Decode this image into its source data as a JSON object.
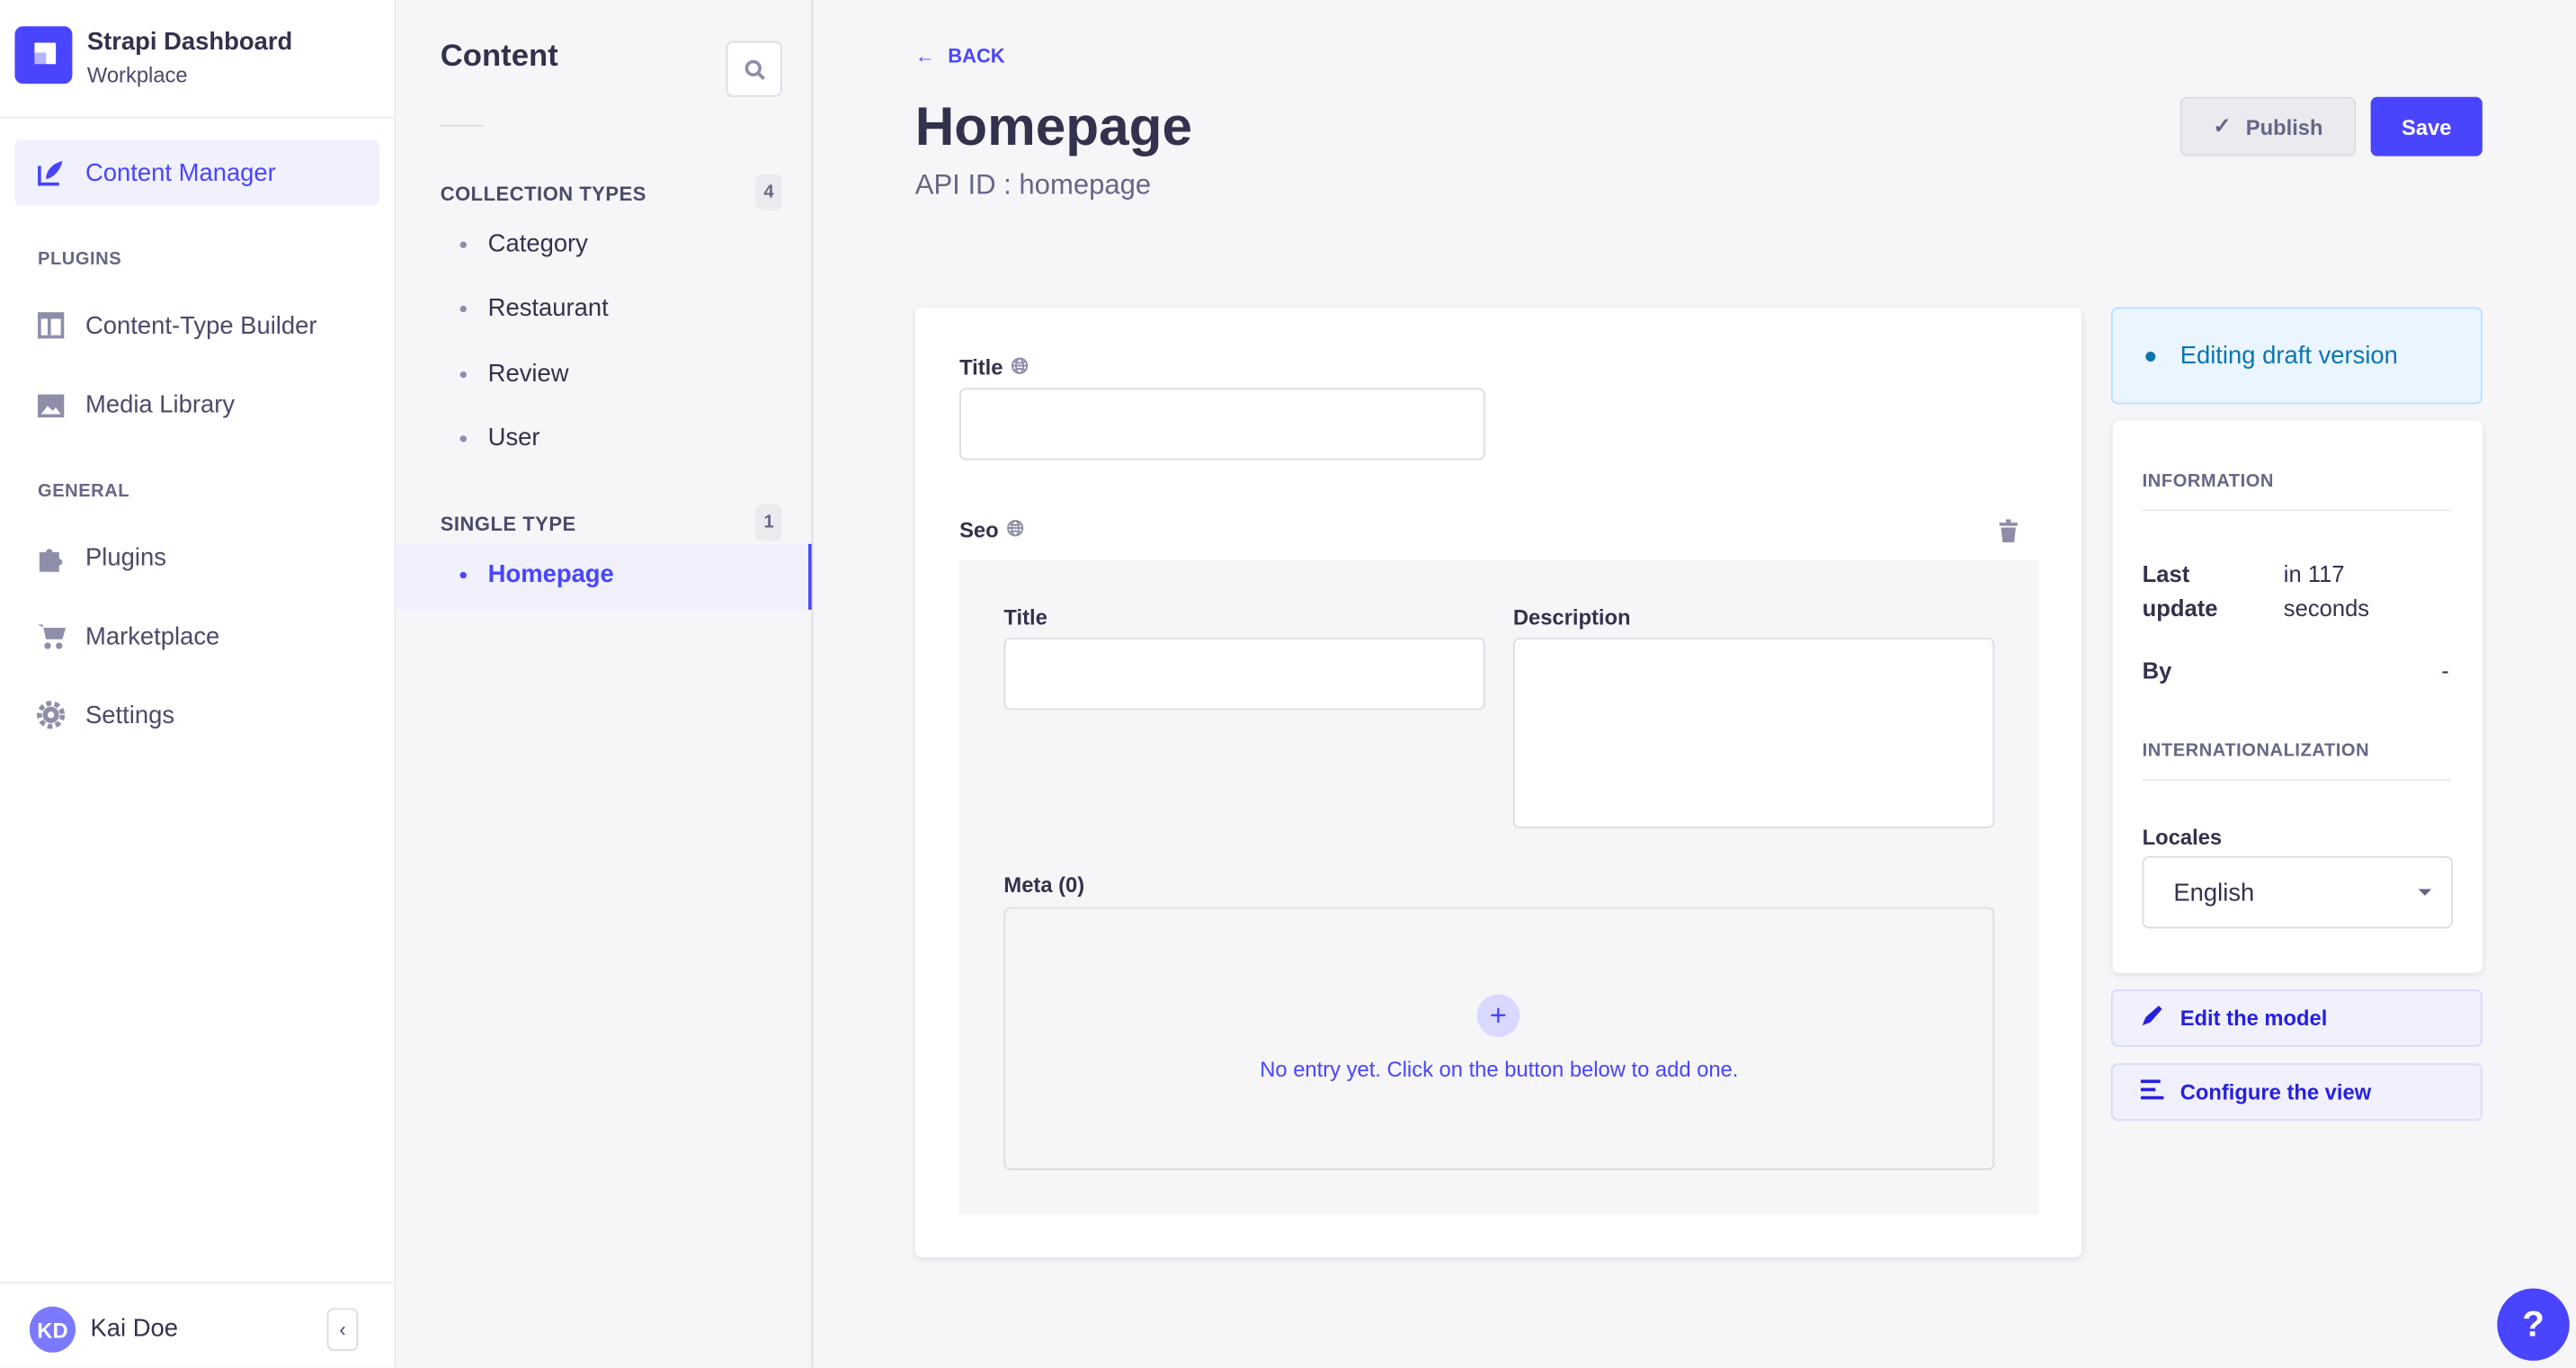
{
  "brand": {
    "title": "Strapi Dashboard",
    "subtitle": "Workplace"
  },
  "nav": {
    "active": "Content Manager",
    "plugins_heading": "PLUGINS",
    "plugins": [
      "Content-Type Builder",
      "Media Library"
    ],
    "general_heading": "GENERAL",
    "general": [
      "Plugins",
      "Marketplace",
      "Settings"
    ]
  },
  "user": {
    "initials": "KD",
    "name": "Kai Doe"
  },
  "content_nav": {
    "title": "Content",
    "collection_heading": "COLLECTION TYPES",
    "collection_count": "4",
    "collections": [
      "Category",
      "Restaurant",
      "Review",
      "User"
    ],
    "single_heading": "SINGLE TYPE",
    "single_count": "1",
    "singles": [
      "Homepage"
    ]
  },
  "header": {
    "back": "BACK",
    "title": "Homepage",
    "api_id": "API ID : homepage",
    "publish": "Publish",
    "save": "Save"
  },
  "form": {
    "title_label": "Title",
    "seo_label": "Seo",
    "seo_title_label": "Title",
    "seo_description_label": "Description",
    "meta_label": "Meta (0)",
    "meta_empty": "No entry yet. Click on the button below to add one."
  },
  "sidebar": {
    "draft": "Editing draft version",
    "info_heading": "INFORMATION",
    "last_update_label": "Last update",
    "last_update_value": "in 117 seconds",
    "by_label": "By",
    "by_value": "-",
    "i18n_heading": "INTERNATIONALIZATION",
    "locales_label": "Locales",
    "locale_value": "English",
    "edit_model": "Edit the model",
    "configure_view": "Configure the view"
  },
  "colors": {
    "primary": "#4945ff",
    "draft_bg": "#eaf5ff",
    "draft_text": "#0c75af"
  }
}
